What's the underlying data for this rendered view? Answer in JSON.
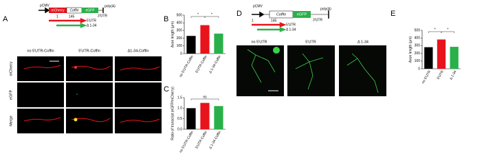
{
  "figure": {
    "panels": [
      "A",
      "B",
      "C",
      "D",
      "E"
    ],
    "construct_a": {
      "promoter": "pCMV",
      "boxes": [
        "mCherry",
        "Coffin",
        "eGFP"
      ],
      "polya": "poly(A)",
      "utr3": "3'UTR",
      "start": "1",
      "end": "145",
      "arrows": [
        "5'UTR",
        "Δ 1-34"
      ]
    },
    "columns_a": [
      "no 5'UTR-Coffin",
      "5'UTR-Coffin",
      "Δ1-34-Coffin"
    ],
    "rows_a": [
      "mCherry",
      "eGFP",
      "Merge"
    ],
    "construct_d": {
      "promoter": "pCMV",
      "boxes": [
        "Coffin",
        "eGFP"
      ],
      "polya": "poly(A)",
      "utr3": "3'UTR",
      "start": "1",
      "end": "145",
      "arrows": [
        "5'UTR",
        "Δ 1-34"
      ]
    },
    "columns_d": [
      "no 5'UTR",
      "5'UTR",
      "Δ 1-34"
    ]
  },
  "chart_data": [
    {
      "type": "bar",
      "y_label": "Axon length (μm)",
      "categories": [
        "no 5'UTR-Coffin",
        "5'UTR-Coffin",
        "Δ 1-34-Coffin"
      ],
      "values": [
        230,
        370,
        260
      ],
      "colors": [
        "#000000",
        "#e8141b",
        "#2ab04a"
      ],
      "ylim": [
        0,
        500
      ],
      "yticks": [
        0,
        100,
        200,
        300,
        400,
        500
      ],
      "annotations": [
        "*",
        "*"
      ]
    },
    {
      "type": "bar",
      "y_label": "Ratio of transcript (eGFP/mCherry)",
      "categories": [
        "no 5'UTR-Coffin",
        "5'UTR-Coffin",
        "Δ 1-34-Coffin"
      ],
      "values": [
        1.0,
        1.25,
        1.1
      ],
      "colors": [
        "#000000",
        "#e8141b",
        "#2ab04a"
      ],
      "ylim": [
        0,
        1.5
      ],
      "yticks": [
        {
          "value": 0,
          "label": "0.0"
        },
        {
          "value": 0.5,
          "label": "0.5"
        },
        {
          "value": 1,
          "label": "1.0"
        },
        {
          "value": 1.5,
          "label": "1.5"
        }
      ],
      "annotations": [
        "ns"
      ]
    },
    {
      "type": "bar",
      "y_label": "Axon length (μm)",
      "categories": [
        "no 5'UTR",
        "5'UTR",
        "Δ 1-34"
      ],
      "values": [
        280,
        380,
        285
      ],
      "colors": [
        "#000000",
        "#e8141b",
        "#2ab04a"
      ],
      "ylim": [
        0,
        500
      ],
      "yticks": [
        0,
        100,
        200,
        300,
        400,
        500
      ],
      "annotations": [
        "*",
        "*"
      ]
    }
  ]
}
